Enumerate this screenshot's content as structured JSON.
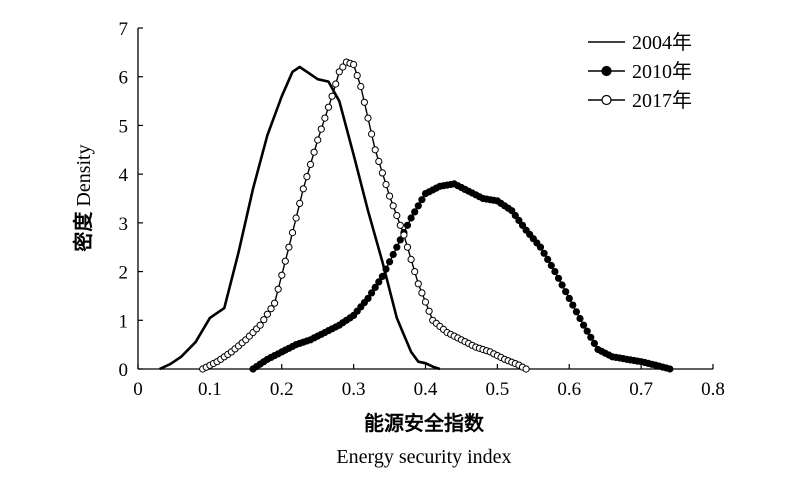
{
  "chart_data": {
    "type": "line",
    "title": "",
    "xlabel_cn": "能源安全指数",
    "xlabel_en": "Energy security index",
    "ylabel_cn": "密度",
    "ylabel_en": "Density",
    "xlim": [
      0,
      0.8
    ],
    "ylim": [
      0,
      7
    ],
    "x_ticks": [
      "0",
      "0.1",
      "0.2",
      "0.3",
      "0.4",
      "0.5",
      "0.6",
      "0.7",
      "0.8"
    ],
    "y_ticks": [
      "0",
      "1",
      "2",
      "3",
      "4",
      "5",
      "6",
      "7"
    ],
    "grid": false,
    "legend_position": "top-right",
    "series": [
      {
        "name": "2004年",
        "marker": "none",
        "color": "#000000",
        "x": [
          0.03,
          0.045,
          0.06,
          0.08,
          0.1,
          0.12,
          0.14,
          0.16,
          0.18,
          0.2,
          0.215,
          0.225,
          0.235,
          0.25,
          0.265,
          0.28,
          0.3,
          0.32,
          0.34,
          0.36,
          0.37,
          0.38,
          0.39,
          0.4,
          0.41,
          0.42
        ],
        "y": [
          0.0,
          0.1,
          0.25,
          0.55,
          1.05,
          1.25,
          2.4,
          3.7,
          4.8,
          5.6,
          6.1,
          6.2,
          6.1,
          5.95,
          5.9,
          5.5,
          4.4,
          3.25,
          2.2,
          1.05,
          0.7,
          0.35,
          0.15,
          0.12,
          0.05,
          0.0
        ]
      },
      {
        "name": "2010年",
        "marker": "filled-circle",
        "color": "#000000",
        "x": [
          0.16,
          0.18,
          0.2,
          0.22,
          0.24,
          0.26,
          0.28,
          0.3,
          0.32,
          0.34,
          0.36,
          0.38,
          0.4,
          0.42,
          0.44,
          0.46,
          0.48,
          0.5,
          0.52,
          0.54,
          0.56,
          0.58,
          0.6,
          0.62,
          0.64,
          0.66,
          0.68,
          0.7,
          0.72,
          0.74
        ],
        "y": [
          0.0,
          0.2,
          0.35,
          0.5,
          0.6,
          0.75,
          0.9,
          1.1,
          1.45,
          1.9,
          2.5,
          3.1,
          3.6,
          3.75,
          3.8,
          3.65,
          3.5,
          3.45,
          3.25,
          2.85,
          2.5,
          2.0,
          1.45,
          0.9,
          0.4,
          0.25,
          0.2,
          0.15,
          0.08,
          0.0
        ]
      },
      {
        "name": "2017年",
        "marker": "open-circle",
        "color": "#000000",
        "x": [
          0.09,
          0.11,
          0.13,
          0.15,
          0.17,
          0.19,
          0.21,
          0.23,
          0.25,
          0.27,
          0.28,
          0.29,
          0.3,
          0.31,
          0.32,
          0.33,
          0.35,
          0.37,
          0.39,
          0.41,
          0.43,
          0.45,
          0.47,
          0.49,
          0.51,
          0.53,
          0.54
        ],
        "y": [
          0.0,
          0.15,
          0.35,
          0.6,
          0.9,
          1.35,
          2.5,
          3.7,
          4.7,
          5.6,
          6.1,
          6.3,
          6.25,
          5.8,
          5.15,
          4.5,
          3.55,
          2.75,
          1.75,
          1.0,
          0.75,
          0.6,
          0.45,
          0.35,
          0.2,
          0.08,
          0.0
        ]
      }
    ]
  }
}
